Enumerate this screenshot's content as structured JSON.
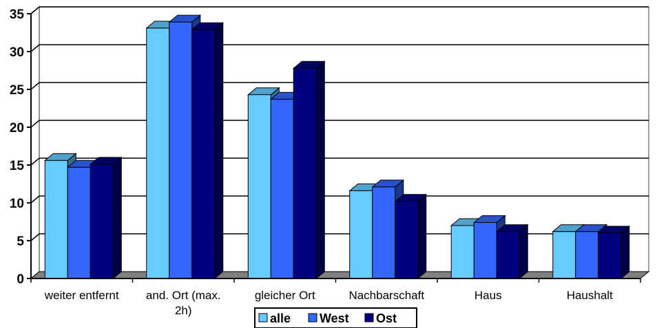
{
  "chart_data": {
    "type": "bar",
    "categories": [
      [
        "weiter entfernt"
      ],
      [
        "and. Ort (max.",
        "2h)"
      ],
      [
        "gleicher Ort"
      ],
      [
        "Nachbarschaft"
      ],
      [
        "Haus"
      ],
      [
        "Haushalt"
      ]
    ],
    "series": [
      {
        "name": "alle",
        "color": "#66CCFF",
        "values": [
          15.6,
          33.1,
          24.3,
          11.6,
          7.0,
          6.2
        ]
      },
      {
        "name": "West",
        "color": "#3366FF",
        "values": [
          14.7,
          33.9,
          23.7,
          12.1,
          7.4,
          6.2
        ]
      },
      {
        "name": "Ost",
        "color": "#000080",
        "values": [
          15.1,
          32.9,
          27.8,
          10.2,
          6.2,
          6.0
        ]
      }
    ],
    "ylim": [
      0,
      35
    ],
    "yticks": [
      0,
      5,
      10,
      15,
      20,
      25,
      30,
      35
    ],
    "grid": true,
    "legend": "bottom"
  }
}
